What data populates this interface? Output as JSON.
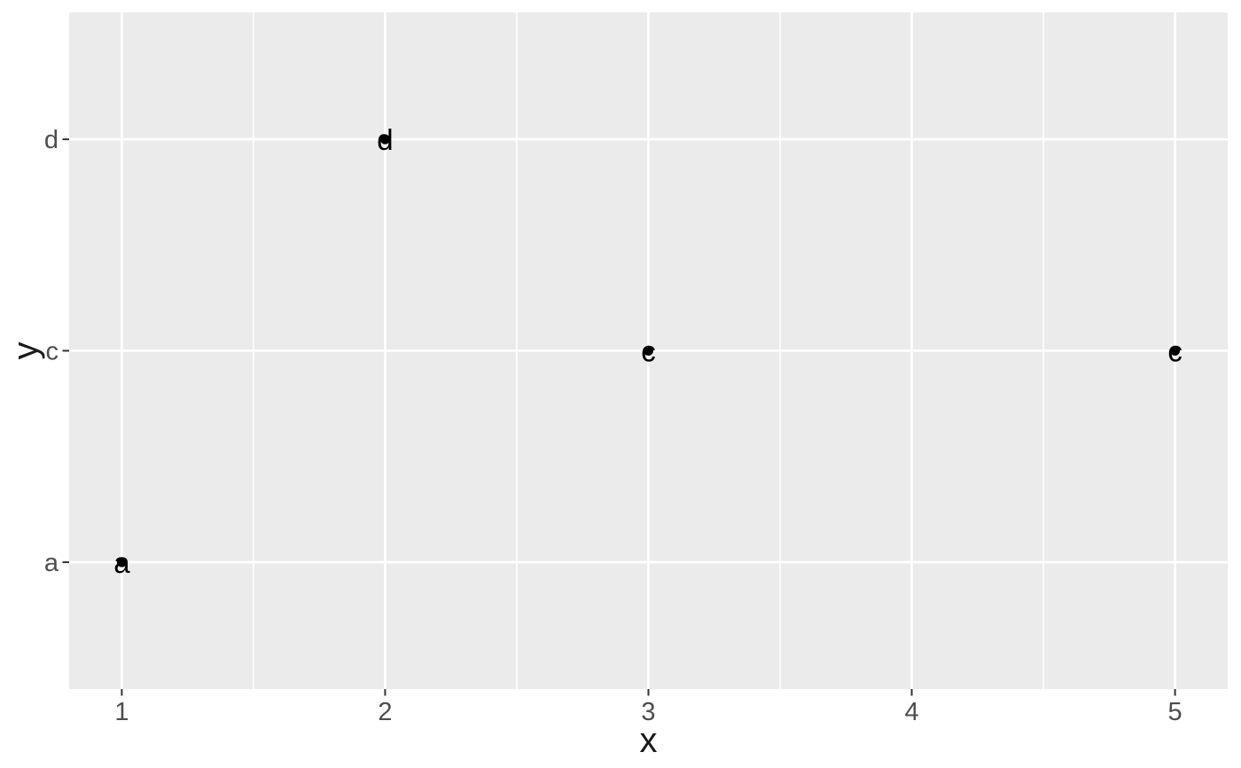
{
  "chart_data": {
    "type": "scatter",
    "title": "",
    "xlabel": "x",
    "ylabel": "y",
    "x_ticks": [
      1,
      2,
      3,
      4,
      5
    ],
    "x_minor_ticks": [
      1.5,
      2.5,
      3.5,
      4.5
    ],
    "xlim": [
      0.8,
      5.2
    ],
    "y_categories": [
      "a",
      "c",
      "d"
    ],
    "y_tick_labels": [
      "a",
      "c",
      "d"
    ],
    "points": [
      {
        "x": 1,
        "y": "a",
        "label": "a"
      },
      {
        "x": 2,
        "y": "d",
        "label": "d"
      },
      {
        "x": 3,
        "y": "c",
        "label": "c"
      },
      {
        "x": 5,
        "y": "c",
        "label": "c"
      }
    ],
    "point_style": "filled circle with category letter text overlaid at same coordinate",
    "legend_position": "none",
    "grid": "on",
    "theme": "ggplot2 gray",
    "colors": {
      "panel_background": "#EBEBEB",
      "plot_background": "#FFFFFF",
      "gridline": "#FFFFFF",
      "tick_label": "#4D4D4D",
      "tick_mark": "#333333",
      "axis_title": "#1A1A1A",
      "point": "#000000"
    }
  }
}
